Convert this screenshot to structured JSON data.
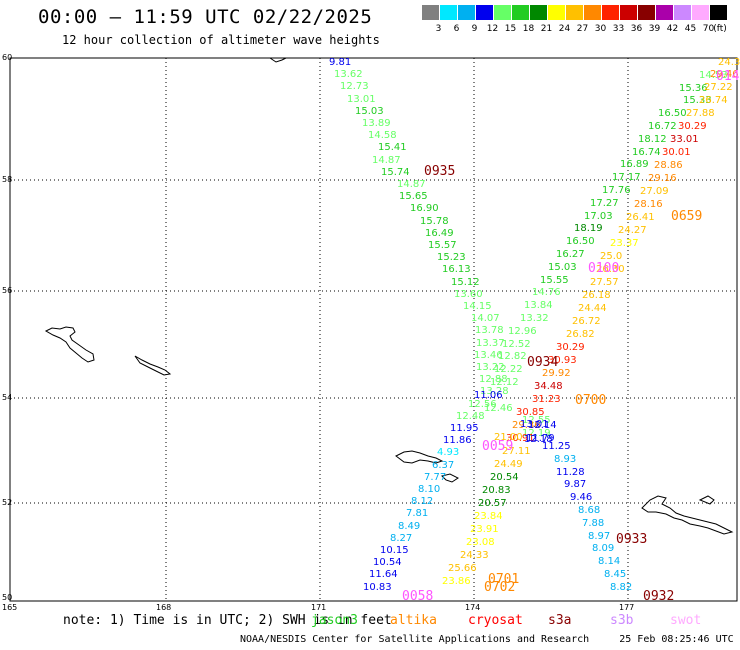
{
  "title": "00:00 — 11:59 UTC 02/22/2025",
  "subtitle": "12 hour collection of altimeter wave heights",
  "legend": {
    "unit": "(ft)",
    "bins": [
      {
        "label": "3",
        "color": "#808080"
      },
      {
        "label": "6",
        "color": "#00e8ff"
      },
      {
        "label": "9",
        "color": "#00b0f0"
      },
      {
        "label": "12",
        "color": "#0000ee"
      },
      {
        "label": "15",
        "color": "#66ff66"
      },
      {
        "label": "18",
        "color": "#22cc22"
      },
      {
        "label": "21",
        "color": "#008800"
      },
      {
        "label": "24",
        "color": "#ffff00"
      },
      {
        "label": "27",
        "color": "#ffc000"
      },
      {
        "label": "30",
        "color": "#ff8800"
      },
      {
        "label": "33",
        "color": "#ff2200"
      },
      {
        "label": "36",
        "color": "#cc0000"
      },
      {
        "label": "39",
        "color": "#880000"
      },
      {
        "label": "42",
        "color": "#aa00aa"
      },
      {
        "label": "45",
        "color": "#cc88ff"
      },
      {
        "label": "70",
        "color": "#ffaaff"
      },
      {
        "label": "",
        "color": "#000000"
      }
    ]
  },
  "map": {
    "lat_labels": [
      "60",
      "58",
      "56",
      "54",
      "52",
      "50"
    ],
    "lon_labels": [
      "165",
      "168",
      "171",
      "174",
      "177"
    ]
  },
  "tracks": [
    {
      "name": "track-a",
      "color_note": "descending NW to SE",
      "points": [
        {
          "v": "9.81",
          "c": "#0000ee"
        },
        {
          "v": "13.62",
          "c": "#66ff66"
        },
        {
          "v": "12.73",
          "c": "#66ff66"
        },
        {
          "v": "13.01",
          "c": "#66ff66"
        },
        {
          "v": "15.03",
          "c": "#22cc22"
        },
        {
          "v": "13.89",
          "c": "#66ff66"
        },
        {
          "v": "14.58",
          "c": "#66ff66"
        },
        {
          "v": "15.41",
          "c": "#22cc22"
        },
        {
          "v": "14.87",
          "c": "#66ff66"
        },
        {
          "v": "15.74",
          "c": "#22cc22"
        },
        {
          "v": "14.87",
          "c": "#66ff66"
        },
        {
          "v": "15.65",
          "c": "#22cc22"
        },
        {
          "v": "16.90",
          "c": "#22cc22"
        },
        {
          "v": "15.78",
          "c": "#22cc22"
        },
        {
          "v": "16.49",
          "c": "#22cc22"
        },
        {
          "v": "15.57",
          "c": "#22cc22"
        },
        {
          "v": "15.23",
          "c": "#22cc22"
        },
        {
          "v": "16.13",
          "c": "#22cc22"
        },
        {
          "v": "15.12",
          "c": "#22cc22"
        },
        {
          "v": "13.60",
          "c": "#66ff66"
        },
        {
          "v": "14.15",
          "c": "#66ff66"
        },
        {
          "v": "14.07",
          "c": "#66ff66"
        },
        {
          "v": "13.78",
          "c": "#66ff66"
        },
        {
          "v": "13.37",
          "c": "#66ff66"
        },
        {
          "v": "13.46",
          "c": "#66ff66"
        },
        {
          "v": "13.22",
          "c": "#66ff66"
        },
        {
          "v": "12.88",
          "c": "#66ff66"
        },
        {
          "v": "13.28",
          "c": "#66ff66"
        },
        {
          "v": "12.56",
          "c": "#66ff66"
        },
        {
          "v": "12.48",
          "c": "#66ff66"
        },
        {
          "v": "11.95",
          "c": "#0000ee"
        },
        {
          "v": "11.86",
          "c": "#0000ee"
        },
        {
          "v": "4.93",
          "c": "#00e8ff"
        },
        {
          "v": "6.37",
          "c": "#00b0f0"
        },
        {
          "v": "7.77",
          "c": "#00b0f0"
        },
        {
          "v": "8.10",
          "c": "#00b0f0"
        },
        {
          "v": "8.12",
          "c": "#00b0f0"
        },
        {
          "v": "7.81",
          "c": "#00b0f0"
        },
        {
          "v": "8.49",
          "c": "#00b0f0"
        },
        {
          "v": "8.27",
          "c": "#00b0f0"
        },
        {
          "v": "10.15",
          "c": "#0000ee"
        },
        {
          "v": "10.54",
          "c": "#0000ee"
        },
        {
          "v": "11.64",
          "c": "#0000ee"
        },
        {
          "v": "10.83",
          "c": "#0000ee"
        }
      ]
    },
    {
      "name": "track-b",
      "points": [
        {
          "v": "24.3",
          "c": "#ffc000"
        },
        {
          "v": "14.53",
          "c": "#66ff66"
        },
        {
          "v": "15.36",
          "c": "#22cc22"
        },
        {
          "v": "15.33",
          "c": "#22cc22"
        },
        {
          "v": "16.50",
          "c": "#22cc22"
        },
        {
          "v": "16.72",
          "c": "#22cc22"
        },
        {
          "v": "18.12",
          "c": "#22cc22"
        },
        {
          "v": "16.74",
          "c": "#22cc22"
        },
        {
          "v": "16.89",
          "c": "#22cc22"
        },
        {
          "v": "17.17",
          "c": "#22cc22"
        },
        {
          "v": "17.76",
          "c": "#22cc22"
        },
        {
          "v": "17.27",
          "c": "#22cc22"
        },
        {
          "v": "17.03",
          "c": "#22cc22"
        },
        {
          "v": "18.19",
          "c": "#008800"
        },
        {
          "v": "16.50",
          "c": "#22cc22"
        },
        {
          "v": "16.27",
          "c": "#22cc22"
        },
        {
          "v": "15.03",
          "c": "#22cc22"
        },
        {
          "v": "15.55",
          "c": "#22cc22"
        },
        {
          "v": "14.76",
          "c": "#66ff66"
        },
        {
          "v": "13.84",
          "c": "#66ff66"
        },
        {
          "v": "13.32",
          "c": "#66ff66"
        },
        {
          "v": "12.96",
          "c": "#66ff66"
        },
        {
          "v": "12.52",
          "c": "#66ff66"
        },
        {
          "v": "12.82",
          "c": "#66ff66"
        },
        {
          "v": "12.22",
          "c": "#66ff66"
        },
        {
          "v": "12.12",
          "c": "#66ff66"
        },
        {
          "v": "11.06",
          "c": "#0000ee"
        },
        {
          "v": "12.46",
          "c": "#66ff66"
        },
        {
          "v": "12.55",
          "c": "#66ff66"
        },
        {
          "v": "12.19",
          "c": "#66ff66"
        },
        {
          "v": "11.25",
          "c": "#0000ee"
        },
        {
          "v": "8.93",
          "c": "#00b0f0"
        },
        {
          "v": "11.28",
          "c": "#0000ee"
        },
        {
          "v": "9.87",
          "c": "#0000ee"
        },
        {
          "v": "9.46",
          "c": "#0000ee"
        },
        {
          "v": "8.68",
          "c": "#00b0f0"
        },
        {
          "v": "7.88",
          "c": "#00b0f0"
        },
        {
          "v": "8.97",
          "c": "#00b0f0"
        },
        {
          "v": "8.09",
          "c": "#00b0f0"
        },
        {
          "v": "8.14",
          "c": "#00b0f0"
        },
        {
          "v": "8.45",
          "c": "#00b0f0"
        },
        {
          "v": "8.82",
          "c": "#00b0f0"
        }
      ]
    },
    {
      "name": "track-c",
      "points": [
        {
          "v": "29.46",
          "c": "#ff8800"
        },
        {
          "v": "27.22",
          "c": "#ffc000"
        },
        {
          "v": "26.74",
          "c": "#ffc000"
        },
        {
          "v": "27.88",
          "c": "#ffc000"
        },
        {
          "v": "30.29",
          "c": "#ff2200"
        },
        {
          "v": "33.01",
          "c": "#cc0000"
        },
        {
          "v": "30.01",
          "c": "#ff2200"
        },
        {
          "v": "28.86",
          "c": "#ff8800"
        },
        {
          "v": "29.16",
          "c": "#ff8800"
        },
        {
          "v": "27.09",
          "c": "#ffc000"
        },
        {
          "v": "28.16",
          "c": "#ff8800"
        },
        {
          "v": "26.41",
          "c": "#ffc000"
        },
        {
          "v": "24.27",
          "c": "#ffc000"
        },
        {
          "v": "23.37",
          "c": "#ffff00"
        },
        {
          "v": "25.0",
          "c": "#ffc000"
        },
        {
          "v": "26.30",
          "c": "#ffc000"
        },
        {
          "v": "27.57",
          "c": "#ffc000"
        },
        {
          "v": "26.18",
          "c": "#ffc000"
        },
        {
          "v": "24.44",
          "c": "#ffc000"
        },
        {
          "v": "26.72",
          "c": "#ffc000"
        },
        {
          "v": "26.82",
          "c": "#ffc000"
        },
        {
          "v": "30.29",
          "c": "#ff2200"
        },
        {
          "v": "30.93",
          "c": "#ff2200"
        },
        {
          "v": "29.92",
          "c": "#ff8800"
        },
        {
          "v": "34.48",
          "c": "#cc0000"
        },
        {
          "v": "31.23",
          "c": "#ff2200"
        },
        {
          "v": "30.85",
          "c": "#ff2200"
        },
        {
          "v": "29.36",
          "c": "#ff8800"
        },
        {
          "v": "30.91",
          "c": "#ff2200"
        },
        {
          "v": "27.11",
          "c": "#ffc000"
        },
        {
          "v": "24.49",
          "c": "#ffc000"
        },
        {
          "v": "20.54",
          "c": "#008800"
        },
        {
          "v": "20.83",
          "c": "#008800"
        },
        {
          "v": "20.57",
          "c": "#008800"
        },
        {
          "v": "23.84",
          "c": "#ffff00"
        },
        {
          "v": "23.91",
          "c": "#ffff00"
        },
        {
          "v": "23.08",
          "c": "#ffff00"
        },
        {
          "v": "24.33",
          "c": "#ffc000"
        },
        {
          "v": "25.66",
          "c": "#ffc000"
        },
        {
          "v": "23.86",
          "c": "#ffff00"
        }
      ]
    },
    {
      "name": "track-d",
      "points": [
        {
          "v": "13.01",
          "c": "#0000ee"
        },
        {
          "v": "12.14",
          "c": "#0000ee"
        },
        {
          "v": "11.79",
          "c": "#0000ee"
        },
        {
          "v": "12.18",
          "c": "#0000ee"
        },
        {
          "v": "21.00",
          "c": "#ffc000"
        }
      ]
    }
  ],
  "times": [
    {
      "label": "0935",
      "c": "#880000"
    },
    {
      "label": "0659",
      "c": "#ff8800"
    },
    {
      "label": "0100",
      "c": "#ff55ff"
    },
    {
      "label": "0934",
      "c": "#880000"
    },
    {
      "label": "0700",
      "c": "#ff8800"
    },
    {
      "label": "0059",
      "c": "#ff55ff"
    },
    {
      "label": "0933",
      "c": "#880000"
    },
    {
      "label": "0701",
      "c": "#ff8800"
    },
    {
      "label": "0702",
      "c": "#ff8800"
    },
    {
      "label": "0058",
      "c": "#ff55ff"
    },
    {
      "label": "0932",
      "c": "#880000"
    },
    {
      "label": "0143",
      "c": "#ff55ff"
    }
  ],
  "note": "note: 1) Time is in UTC; 2) SWH is in feet",
  "satellites": [
    {
      "name": "jason3",
      "color": "#22cc22"
    },
    {
      "name": "altika",
      "color": "#ff8800"
    },
    {
      "name": "cryosat",
      "color": "#ff0000"
    },
    {
      "name": "s3a",
      "color": "#880000"
    },
    {
      "name": "s3b",
      "color": "#cc88ff"
    },
    {
      "name": "swot",
      "color": "#ffaaff"
    }
  ],
  "footer_left": "NOAA/NESDIS Center for Satellite Applications and Research",
  "footer_right": "25 Feb 08:25:46 UTC 2025"
}
